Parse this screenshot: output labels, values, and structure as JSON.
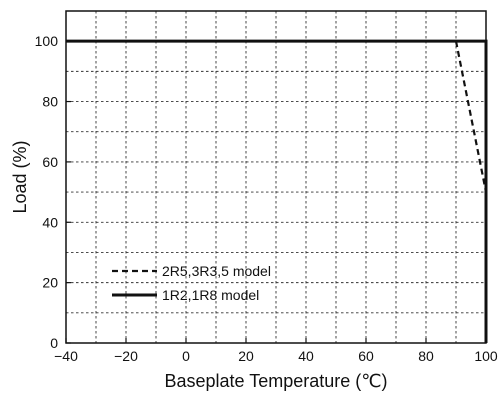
{
  "chart_data": {
    "type": "line",
    "title": "",
    "xlabel": "Baseplate Temperature (℃)",
    "ylabel": "Load (%)",
    "xlim": [
      -40,
      100
    ],
    "ylim": [
      0,
      110
    ],
    "x_ticks": [
      -40,
      -20,
      0,
      20,
      40,
      60,
      80,
      100
    ],
    "x_tick_labels": [
      "−40",
      "−20",
      "0",
      "20",
      "40",
      "60",
      "80",
      "100"
    ],
    "y_ticks": [
      0,
      20,
      40,
      60,
      80,
      100
    ],
    "y_tick_labels": [
      "0",
      "20",
      "40",
      "60",
      "80",
      "100"
    ],
    "grid": true,
    "legend": "bottom-left",
    "series": [
      {
        "name": "2R5,3R3,5 model",
        "style": "dashed",
        "color": "#111111",
        "x": [
          -40,
          90,
          100
        ],
        "y": [
          100,
          100,
          50
        ]
      },
      {
        "name": "1R2,1R8 model",
        "style": "solid",
        "color": "#111111",
        "x": [
          -40,
          100,
          100
        ],
        "y": [
          100,
          100,
          0
        ]
      }
    ]
  }
}
